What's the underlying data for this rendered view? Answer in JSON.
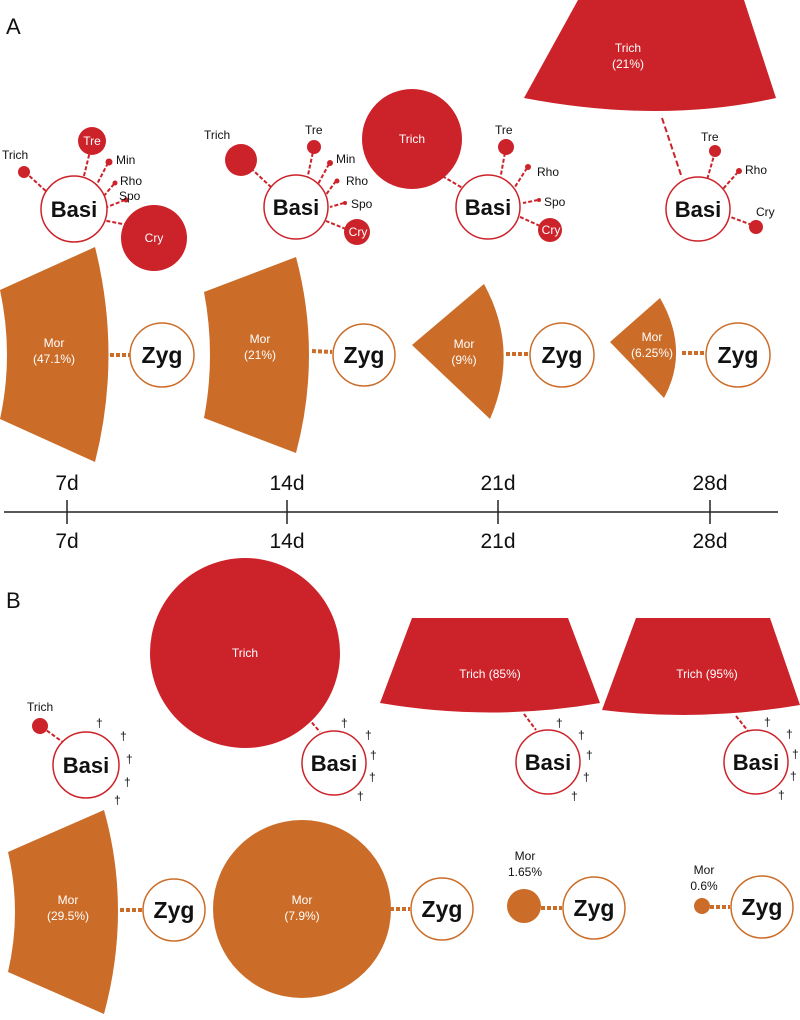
{
  "colors": {
    "basi": "#cc2229",
    "zyg": "#cb6d28",
    "axis": "#222222",
    "text": "#111111"
  },
  "panel_labels": [
    "A",
    "B"
  ],
  "timepoints": [
    "7d",
    "14d",
    "21d",
    "28d"
  ],
  "axis_labels_top": [
    "7d",
    "14d",
    "21d",
    "28d"
  ],
  "axis_labels_bottom": [
    "7d",
    "14d",
    "21d",
    "28d"
  ],
  "hub_labels": {
    "basi": "Basi",
    "zyg": "Zyg"
  },
  "dagger": "†",
  "panel_A": {
    "basi": [
      {
        "time": "7d",
        "partners": [
          {
            "label": "Trich",
            "shape": "circle",
            "size": "small"
          },
          {
            "label": "Tre",
            "shape": "circle",
            "size": "small"
          },
          {
            "label": "Min",
            "shape": "circle",
            "size": "small"
          },
          {
            "label": "Rho",
            "shape": "circle",
            "size": "small"
          },
          {
            "label": "Spo",
            "shape": "circle",
            "size": "small"
          },
          {
            "label": "Cry",
            "shape": "circle",
            "size": "medium"
          }
        ]
      },
      {
        "time": "14d",
        "partners": [
          {
            "label": "Trich",
            "shape": "circle",
            "size": "small"
          },
          {
            "label": "Tre",
            "shape": "circle",
            "size": "small"
          },
          {
            "label": "Min",
            "shape": "circle",
            "size": "small"
          },
          {
            "label": "Rho",
            "shape": "circle",
            "size": "small"
          },
          {
            "label": "Spo",
            "shape": "circle",
            "size": "small"
          },
          {
            "label": "Cry",
            "shape": "circle",
            "size": "small"
          }
        ]
      },
      {
        "time": "21d",
        "partners": [
          {
            "label": "Trich",
            "shape": "circle",
            "size": "large"
          },
          {
            "label": "Tre",
            "shape": "circle",
            "size": "small"
          },
          {
            "label": "Rho",
            "shape": "circle",
            "size": "small"
          },
          {
            "label": "Spo",
            "shape": "circle",
            "size": "small"
          },
          {
            "label": "Cry",
            "shape": "circle",
            "size": "small"
          }
        ]
      },
      {
        "time": "28d",
        "partners": [
          {
            "label": "Trich",
            "value_label": "(21%)",
            "percent": 21,
            "shape": "sector"
          },
          {
            "label": "Tre",
            "shape": "circle",
            "size": "small"
          },
          {
            "label": "Rho",
            "shape": "circle",
            "size": "small"
          },
          {
            "label": "Cry",
            "shape": "circle",
            "size": "small"
          }
        ]
      }
    ],
    "zyg": [
      {
        "time": "7d",
        "label": "Mor",
        "value_label": "(47.1%)",
        "percent": 47.1
      },
      {
        "time": "14d",
        "label": "Mor",
        "value_label": "(21%)",
        "percent": 21
      },
      {
        "time": "21d",
        "label": "Mor",
        "value_label": "(9%)",
        "percent": 9
      },
      {
        "time": "28d",
        "label": "Mor",
        "value_label": "(6.25%)",
        "percent": 6.25
      }
    ]
  },
  "panel_B": {
    "basi": [
      {
        "time": "7d",
        "partners": [
          {
            "label": "Trich",
            "shape": "circle",
            "size": "small"
          }
        ]
      },
      {
        "time": "14d",
        "partners": [
          {
            "label": "Trich",
            "shape": "circle",
            "size": "very-large"
          }
        ]
      },
      {
        "time": "21d",
        "partners": [
          {
            "label": "Trich (85%)",
            "percent": 85,
            "shape": "sector"
          }
        ]
      },
      {
        "time": "28d",
        "partners": [
          {
            "label": "Trich (95%)",
            "percent": 95,
            "shape": "sector"
          }
        ]
      }
    ],
    "zyg": [
      {
        "time": "7d",
        "label": "Mor",
        "value_label": "(29.5%)",
        "percent": 29.5
      },
      {
        "time": "14d",
        "label": "Mor",
        "value_label": "(7.9%)",
        "percent": 7.9
      },
      {
        "time": "21d",
        "label": "Mor",
        "value_label": "1.65%",
        "percent": 1.65
      },
      {
        "time": "28d",
        "label": "Mor",
        "value_label": "0.6%",
        "percent": 0.6
      }
    ]
  }
}
